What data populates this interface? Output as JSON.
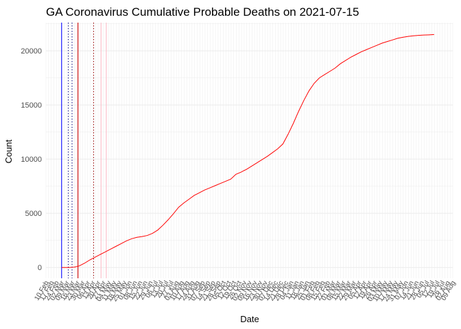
{
  "chart_data": {
    "type": "line",
    "title": "GA Coronavirus Cumulative Probable Deaths on 2021-07-15",
    "xlabel": "Date",
    "ylabel": "Count",
    "x_range": [
      "2020-02-10",
      "2021-08-09"
    ],
    "ylim": [
      -1000,
      22600
    ],
    "y_ticks": [
      0,
      5000,
      10000,
      15000,
      20000
    ],
    "x_tick_labels": [
      "10 Feb",
      "17 Feb",
      "24 Feb",
      "02 Mar",
      "09 Mar",
      "16 Mar",
      "23 Mar",
      "30 Mar",
      "06 Apr",
      "13 Apr",
      "20 Apr",
      "27 Apr",
      "04 May",
      "11 May",
      "18 May",
      "25 May",
      "01 Jun",
      "08 Jun",
      "15 Jun",
      "22 Jun",
      "29 Jun",
      "06 Jul",
      "13 Jul",
      "20 Jul",
      "27 Jul",
      "03 Aug",
      "10 Aug",
      "17 Aug",
      "24 Aug",
      "31 Aug",
      "07 Sep",
      "14 Sep",
      "21 Sep",
      "28 Sep",
      "05 Oct",
      "12 Oct",
      "19 Oct",
      "26 Oct",
      "02 Nov",
      "09 Nov",
      "16 Nov",
      "23 Nov",
      "30 Nov",
      "07 Dec",
      "14 Dec",
      "21 Dec",
      "28 Dec",
      "04 Jan",
      "11 Jan",
      "18 Jan",
      "25 Jan",
      "01 Feb",
      "08 Feb",
      "15 Feb",
      "22 Feb",
      "01 Mar",
      "08 Mar",
      "15 Mar",
      "22 Mar",
      "29 Mar",
      "05 Apr",
      "12 Apr",
      "19 Apr",
      "26 Apr",
      "03 May",
      "10 May",
      "17 May",
      "24 May",
      "31 May",
      "07 Jun",
      "14 Jun",
      "21 Jun",
      "28 Jun",
      "05 Jul",
      "12 Jul",
      "19 Jul",
      "26 Jul",
      "02 Aug",
      "09 Aug"
    ],
    "grid": true,
    "series": [
      {
        "color": "#ff0000",
        "x": [
          "2020-03-02",
          "2020-03-12",
          "2020-03-19",
          "2020-03-26",
          "2020-04-02",
          "2020-04-09",
          "2020-04-16",
          "2020-04-23",
          "2020-04-30",
          "2020-05-07",
          "2020-05-14",
          "2020-05-21",
          "2020-05-28",
          "2020-06-04",
          "2020-06-11",
          "2020-06-18",
          "2020-06-25",
          "2020-07-02",
          "2020-07-09",
          "2020-07-16",
          "2020-07-23",
          "2020-07-30",
          "2020-08-06",
          "2020-08-13",
          "2020-08-20",
          "2020-08-27",
          "2020-09-03",
          "2020-09-10",
          "2020-09-17",
          "2020-09-24",
          "2020-10-01",
          "2020-10-08",
          "2020-10-15",
          "2020-10-22",
          "2020-10-29",
          "2020-11-02",
          "2020-11-05",
          "2020-11-12",
          "2020-11-19",
          "2020-11-26",
          "2020-12-03",
          "2020-12-10",
          "2020-12-17",
          "2020-12-24",
          "2020-12-31",
          "2021-01-07",
          "2021-01-14",
          "2021-01-21",
          "2021-01-28",
          "2021-02-04",
          "2021-02-11",
          "2021-02-18",
          "2021-02-25",
          "2021-03-04",
          "2021-03-11",
          "2021-03-18",
          "2021-03-25",
          "2021-04-01",
          "2021-04-08",
          "2021-04-15",
          "2021-04-22",
          "2021-04-29",
          "2021-05-06",
          "2021-05-13",
          "2021-05-20",
          "2021-05-27",
          "2021-06-03",
          "2021-06-10",
          "2021-06-17",
          "2021-06-24",
          "2021-07-01",
          "2021-07-08",
          "2021-07-15"
        ],
        "values": [
          0,
          0,
          30,
          150,
          400,
          700,
          950,
          1200,
          1450,
          1700,
          1950,
          2200,
          2450,
          2650,
          2780,
          2850,
          2950,
          3150,
          3450,
          3900,
          4400,
          4950,
          5550,
          5950,
          6300,
          6650,
          6900,
          7150,
          7350,
          7550,
          7750,
          7950,
          8150,
          8600,
          8800,
          8950,
          9050,
          9350,
          9650,
          9950,
          10250,
          10600,
          10950,
          11400,
          12300,
          13300,
          14400,
          15400,
          16300,
          17000,
          17500,
          17800,
          18100,
          18400,
          18800,
          19100,
          19400,
          19650,
          19900,
          20100,
          20300,
          20500,
          20700,
          20850,
          21000,
          21150,
          21250,
          21330,
          21380,
          21420,
          21450,
          21470,
          21500
        ]
      }
    ],
    "reference_lines": [
      {
        "x": "2020-03-02",
        "color": "#0000ff",
        "style": "solid"
      },
      {
        "x": "2020-03-11",
        "color": "#000080",
        "style": "dotted"
      },
      {
        "x": "2020-03-16",
        "color": "#000080",
        "style": "dotted"
      },
      {
        "x": "2020-03-24",
        "color": "#cc0000",
        "style": "solid"
      },
      {
        "x": "2020-04-14",
        "color": "#990000",
        "style": "dotted"
      },
      {
        "x": "2020-04-24",
        "color": "#ffc0cb",
        "style": "solid"
      },
      {
        "x": "2020-05-01",
        "color": "#ffc0cb",
        "style": "solid"
      }
    ]
  }
}
